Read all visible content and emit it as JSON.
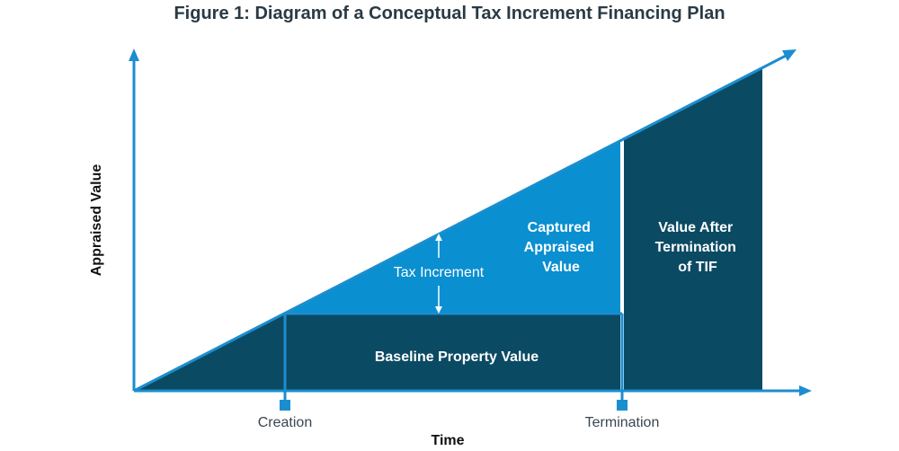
{
  "title": "Figure 1: Diagram of a Conceptual Tax Increment Financing Plan",
  "axes": {
    "y_label": "Appraised Value",
    "x_label": "Time"
  },
  "ticks": {
    "creation": "Creation",
    "termination": "Termination"
  },
  "regions": {
    "baseline": "Baseline Property Value",
    "captured": [
      "Captured",
      "Appraised",
      "Value"
    ],
    "after": [
      "Value After",
      "Termination",
      "of TIF"
    ]
  },
  "annotation": {
    "tax_increment": "Tax Increment"
  },
  "colors": {
    "dark": "#0b4a63",
    "light": "#0a8fd0",
    "axis": "#1b8ecf",
    "title": "#2a3a44"
  }
}
